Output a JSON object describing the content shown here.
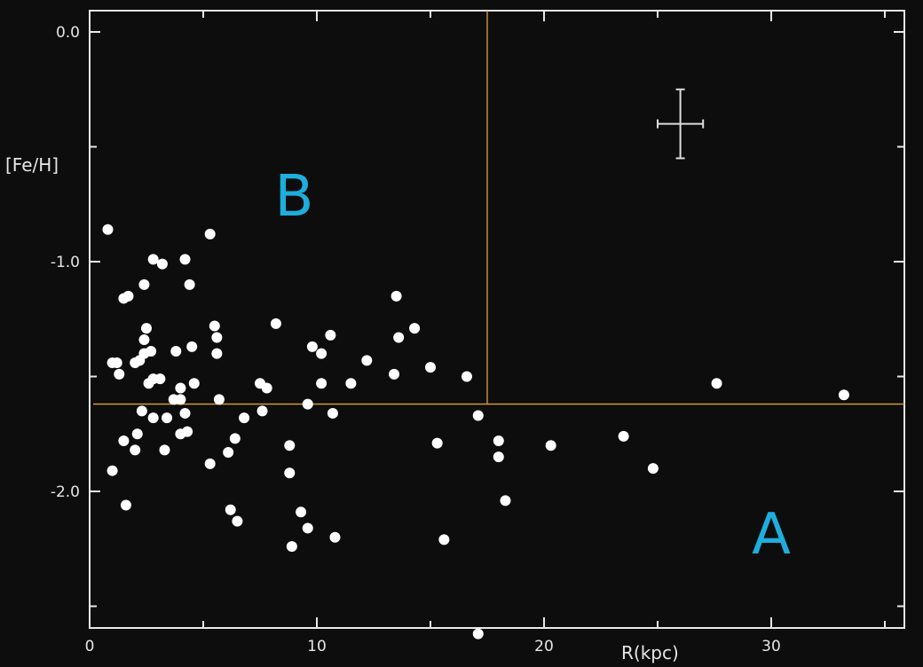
{
  "chart_data": {
    "type": "scatter",
    "title": "",
    "xlabel": "R(kpc)",
    "ylabel": "[Fe/H]",
    "xlim": [
      0,
      36
    ],
    "ylim": [
      -2.5,
      0.1
    ],
    "x_ticks": [
      0,
      10,
      20,
      30
    ],
    "x_tick_labels": [
      "0",
      "10",
      "20",
      "30"
    ],
    "y_ticks": [
      0.0,
      -1.0,
      -2.0
    ],
    "y_tick_labels": [
      "0.0",
      "-1.0",
      "-2.0"
    ],
    "grid": false,
    "colors": {
      "background": "#0d0d0d",
      "points": "#ffffff",
      "divider_lines": "#e0a030",
      "region_labels": "#1eaedd"
    },
    "divider_lines": {
      "horizontal_feh": -1.62,
      "vertical_r": 17.5
    },
    "region_labels": [
      {
        "text": "B",
        "x": 9.0,
        "y": -0.8
      },
      {
        "text": "A",
        "x": 30.0,
        "y": -2.27
      }
    ],
    "error_bar": {
      "x": 26.0,
      "y": -0.4,
      "x_err": 1.0,
      "y_err": 0.15
    },
    "series": [
      {
        "points": [
          [
            0.8,
            -0.86
          ],
          [
            1.0,
            -1.44
          ],
          [
            1.2,
            -1.44
          ],
          [
            1.3,
            -1.49
          ],
          [
            1.5,
            -1.16
          ],
          [
            1.7,
            -1.15
          ],
          [
            1.5,
            -1.78
          ],
          [
            1.0,
            -1.91
          ],
          [
            1.6,
            -2.06
          ],
          [
            2.0,
            -1.44
          ],
          [
            2.2,
            -1.43
          ],
          [
            2.4,
            -1.34
          ],
          [
            2.5,
            -1.29
          ],
          [
            2.4,
            -1.1
          ],
          [
            2.8,
            -0.99
          ],
          [
            3.2,
            -1.01
          ],
          [
            4.2,
            -0.99
          ],
          [
            4.4,
            -1.1
          ],
          [
            2.7,
            -1.39
          ],
          [
            2.4,
            -1.4
          ],
          [
            2.6,
            -1.53
          ],
          [
            2.8,
            -1.51
          ],
          [
            3.1,
            -1.51
          ],
          [
            2.3,
            -1.65
          ],
          [
            2.8,
            -1.68
          ],
          [
            3.4,
            -1.68
          ],
          [
            2.1,
            -1.75
          ],
          [
            2.0,
            -1.82
          ],
          [
            3.3,
            -1.82
          ],
          [
            3.7,
            -1.6
          ],
          [
            4.0,
            -1.55
          ],
          [
            4.0,
            -1.6
          ],
          [
            3.8,
            -1.39
          ],
          [
            4.5,
            -1.37
          ],
          [
            4.6,
            -1.53
          ],
          [
            4.2,
            -1.66
          ],
          [
            4.0,
            -1.75
          ],
          [
            4.3,
            -1.74
          ],
          [
            5.3,
            -0.88
          ],
          [
            5.5,
            -1.28
          ],
          [
            5.6,
            -1.33
          ],
          [
            5.6,
            -1.4
          ],
          [
            5.7,
            -1.6
          ],
          [
            5.3,
            -1.88
          ],
          [
            6.1,
            -1.83
          ],
          [
            6.4,
            -1.77
          ],
          [
            6.8,
            -1.68
          ],
          [
            6.2,
            -2.08
          ],
          [
            6.5,
            -2.13
          ],
          [
            7.5,
            -1.53
          ],
          [
            7.8,
            -1.55
          ],
          [
            7.6,
            -1.65
          ],
          [
            8.2,
            -1.27
          ],
          [
            8.8,
            -1.8
          ],
          [
            8.8,
            -1.92
          ],
          [
            8.9,
            -2.24
          ],
          [
            9.3,
            -2.09
          ],
          [
            9.6,
            -2.16
          ],
          [
            9.6,
            -1.62
          ],
          [
            9.8,
            -1.37
          ],
          [
            10.2,
            -1.4
          ],
          [
            10.2,
            -1.53
          ],
          [
            10.6,
            -1.32
          ],
          [
            10.7,
            -1.66
          ],
          [
            10.8,
            -2.2
          ],
          [
            11.5,
            -1.53
          ],
          [
            12.2,
            -1.43
          ],
          [
            13.5,
            -1.15
          ],
          [
            13.6,
            -1.33
          ],
          [
            13.4,
            -1.49
          ],
          [
            14.3,
            -1.29
          ],
          [
            15.0,
            -1.46
          ],
          [
            15.3,
            -1.79
          ],
          [
            15.6,
            -2.21
          ],
          [
            16.6,
            -1.5
          ],
          [
            17.1,
            -1.67
          ],
          [
            17.1,
            -2.62
          ],
          [
            18.0,
            -1.78
          ],
          [
            18.0,
            -1.85
          ],
          [
            18.3,
            -2.04
          ],
          [
            20.3,
            -1.8
          ],
          [
            23.5,
            -1.76
          ],
          [
            24.8,
            -1.9
          ],
          [
            27.6,
            -1.53
          ],
          [
            33.2,
            -1.58
          ]
        ]
      }
    ]
  }
}
